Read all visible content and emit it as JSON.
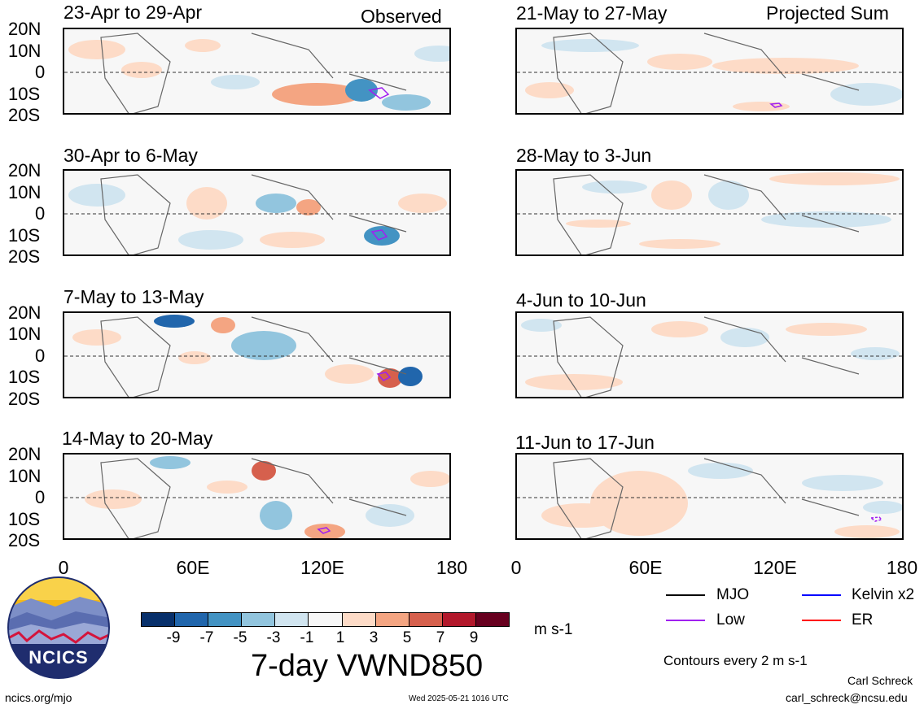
{
  "column_tags": {
    "left": "Observed",
    "right": "Projected Sum"
  },
  "panels_left": [
    {
      "title": "23-Apr to 29-Apr"
    },
    {
      "title": "30-Apr to 6-May"
    },
    {
      "title": "7-May to 13-May"
    },
    {
      "title": "14-May to 20-May"
    }
  ],
  "panels_right": [
    {
      "title": "21-May to 27-May"
    },
    {
      "title": "28-May to 3-Jun"
    },
    {
      "title": "4-Jun to 10-Jun"
    },
    {
      "title": "11-Jun to 17-Jun"
    }
  ],
  "lat_labels": [
    "20N",
    "10N",
    "0",
    "10S",
    "20S"
  ],
  "lon_labels": [
    "0",
    "60E",
    "120E",
    "180"
  ],
  "colorbar": {
    "colors": [
      "#08306b",
      "#2166ac",
      "#4393c3",
      "#92c5de",
      "#d1e5f0",
      "#f7f7f7",
      "#fddbc7",
      "#f4a582",
      "#d6604d",
      "#b2182b",
      "#67001f"
    ],
    "labels": [
      "-9",
      "-7",
      "-5",
      "-3",
      "-1",
      "1",
      "3",
      "5",
      "7",
      "9"
    ],
    "units": "m s-1"
  },
  "main_title": "7-day VWND850",
  "legend": {
    "items": [
      {
        "label": "MJO",
        "color": "#000000"
      },
      {
        "label": "Kelvin x2",
        "color": "#0000ff"
      },
      {
        "label": "Low",
        "color": "#a020f0"
      },
      {
        "label": "ER",
        "color": "#ff0000"
      }
    ],
    "contour_note": "Contours every 2 m s-1"
  },
  "logo": {
    "text": "NCICS"
  },
  "footer": {
    "url": "ncics.org/mjo",
    "timestamp": "Wed 2025-05-21 1016 UTC",
    "author": "Carl Schreck",
    "email": "carl_schreck@ncsu.edu"
  }
}
